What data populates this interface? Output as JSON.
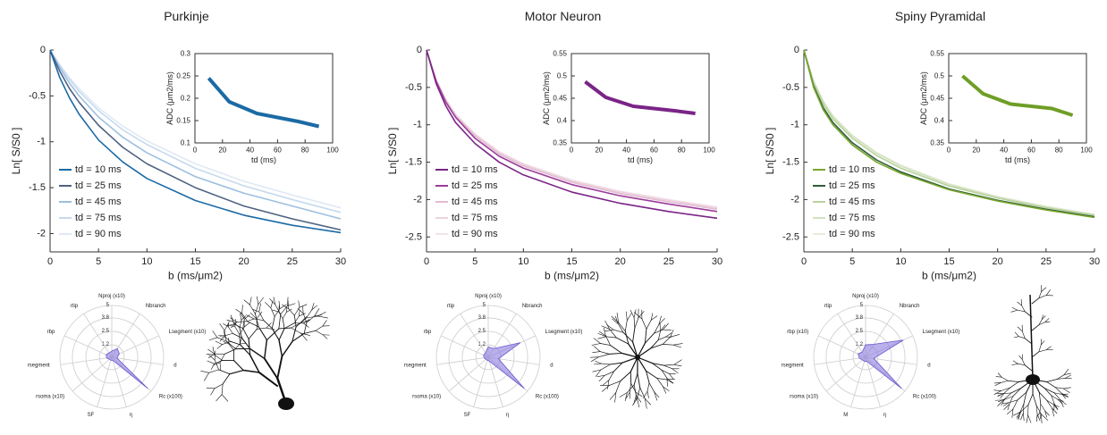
{
  "chart_data": [
    {
      "type": "line",
      "title": "Purkinje",
      "xlabel": "b (ms/μm2)",
      "ylabel": "Ln[ S/S0 ]",
      "x": [
        0,
        1,
        2,
        3,
        5,
        7.5,
        10,
        15,
        20,
        25,
        30
      ],
      "xlim": [
        0,
        30
      ],
      "xticks": [
        0,
        5,
        10,
        15,
        20,
        25,
        30
      ],
      "ylim": [
        -2.2,
        0
      ],
      "yticks": [
        0,
        -0.5,
        -1,
        -1.5,
        -2
      ],
      "legend": "lower left",
      "series": [
        {
          "name": "td = 10 ms",
          "color": "#1b6aa5",
          "values": [
            0,
            -0.3,
            -0.52,
            -0.7,
            -0.98,
            -1.22,
            -1.4,
            -1.64,
            -1.8,
            -1.91,
            -1.99
          ]
        },
        {
          "name": "td = 25 ms",
          "color": "#4e6282",
          "values": [
            0,
            -0.23,
            -0.42,
            -0.57,
            -0.82,
            -1.06,
            -1.24,
            -1.5,
            -1.7,
            -1.84,
            -1.96
          ]
        },
        {
          "name": "td = 45 ms",
          "color": "#9dbfe0",
          "values": [
            0,
            -0.19,
            -0.36,
            -0.5,
            -0.73,
            -0.95,
            -1.12,
            -1.38,
            -1.56,
            -1.7,
            -1.84
          ]
        },
        {
          "name": "td = 75 ms",
          "color": "#c5d9ee",
          "values": [
            0,
            -0.17,
            -0.32,
            -0.45,
            -0.66,
            -0.87,
            -1.03,
            -1.29,
            -1.48,
            -1.63,
            -1.77
          ]
        },
        {
          "name": "td = 90 ms",
          "color": "#dfe9f5",
          "values": [
            0,
            -0.16,
            -0.3,
            -0.42,
            -0.63,
            -0.83,
            -0.99,
            -1.24,
            -1.43,
            -1.58,
            -1.72
          ]
        }
      ]
    },
    {
      "type": "line",
      "xlabel": "td (ms)",
      "ylabel": "ADC (μm2/ms)",
      "color": "#1b6aa5",
      "x": [
        10,
        25,
        45,
        75,
        90
      ],
      "values": [
        0.245,
        0.192,
        0.166,
        0.148,
        0.137
      ],
      "xlim": [
        0,
        100
      ],
      "xticks": [
        0,
        20,
        40,
        60,
        80,
        100
      ],
      "ylim": [
        0.1,
        0.3
      ],
      "yticks": [
        0.1,
        0.15,
        0.2,
        0.25,
        0.3
      ]
    },
    {
      "type": "radar",
      "color": "#8b7be0",
      "axes": [
        "Nproj (x10)",
        "Nbranch",
        "Lsegment (x10)",
        "d",
        "Rc (x100)",
        "η",
        "SF",
        "rsoma (x10)",
        "rsegment",
        "rbp",
        "rtip"
      ],
      "values": [
        0.6,
        1.0,
        0.8,
        0.5,
        4.6,
        0.3,
        0.3,
        0.3,
        0.5,
        0.6,
        0.5
      ],
      "rlim": [
        0,
        5
      ],
      "rticks": [
        1.2,
        2.5,
        3.8,
        5
      ]
    },
    {
      "type": "line",
      "title": "Motor Neuron",
      "xlabel": "b (ms/μm2)",
      "ylabel": "Ln[ S/S0 ]",
      "x": [
        0,
        1,
        2,
        3,
        5,
        7.5,
        10,
        15,
        20,
        25,
        30
      ],
      "xlim": [
        0,
        30
      ],
      "xticks": [
        0,
        5,
        10,
        15,
        20,
        25,
        30
      ],
      "ylim": [
        -2.7,
        0
      ],
      "yticks": [
        0,
        -0.5,
        -1,
        -1.5,
        -2,
        -2.5
      ],
      "legend": "lower left",
      "series": [
        {
          "name": "td = 10 ms",
          "color": "#7a2487",
          "values": [
            0,
            -0.45,
            -0.75,
            -0.97,
            -1.25,
            -1.5,
            -1.67,
            -1.9,
            -2.05,
            -2.16,
            -2.25
          ]
        },
        {
          "name": "td = 25 ms",
          "color": "#9c3d9a",
          "values": [
            0,
            -0.42,
            -0.7,
            -0.9,
            -1.18,
            -1.42,
            -1.58,
            -1.8,
            -1.95,
            -2.06,
            -2.16
          ]
        },
        {
          "name": "td = 45 ms",
          "color": "#e3bcd2",
          "values": [
            0,
            -0.41,
            -0.68,
            -0.88,
            -1.15,
            -1.39,
            -1.55,
            -1.77,
            -1.92,
            -2.03,
            -2.13
          ]
        },
        {
          "name": "td = 75 ms",
          "color": "#ecd2df",
          "values": [
            0,
            -0.4,
            -0.67,
            -0.87,
            -1.13,
            -1.37,
            -1.53,
            -1.75,
            -1.9,
            -2.01,
            -2.11
          ]
        },
        {
          "name": "td = 90 ms",
          "color": "#f3e3ea",
          "values": [
            0,
            -0.4,
            -0.66,
            -0.86,
            -1.12,
            -1.36,
            -1.52,
            -1.74,
            -1.89,
            -2.0,
            -2.1
          ]
        }
      ]
    },
    {
      "type": "line",
      "xlabel": "td (ms)",
      "ylabel": "ADC (μm2/ms)",
      "color": "#7a2487",
      "x": [
        10,
        25,
        45,
        75,
        90
      ],
      "values": [
        0.487,
        0.452,
        0.432,
        0.422,
        0.416
      ],
      "xlim": [
        0,
        100
      ],
      "xticks": [
        0,
        20,
        40,
        60,
        80,
        100
      ],
      "ylim": [
        0.35,
        0.55
      ],
      "yticks": [
        0.35,
        0.4,
        0.45,
        0.5,
        0.55
      ]
    },
    {
      "type": "radar",
      "color": "#8b7be0",
      "axes": [
        "Nproj (x10)",
        "Nbranch",
        "Lsegment (x10)",
        "d",
        "Rc (x100)",
        "η",
        "SF",
        "rsoma (x10)",
        "rsegment",
        "rbp",
        "rtip"
      ],
      "values": [
        1.0,
        1.0,
        3.4,
        1.0,
        4.6,
        0.4,
        0.3,
        0.3,
        0.4,
        0.5,
        0.5
      ],
      "rlim": [
        0,
        5
      ],
      "rticks": [
        1.2,
        2.5,
        3.8,
        5
      ]
    },
    {
      "type": "line",
      "title": "Spiny Pyramidal",
      "xlabel": "b (ms/μm2)",
      "ylabel": "Ln[ S/S0 ]",
      "x": [
        0,
        1,
        2,
        3,
        5,
        7.5,
        10,
        15,
        20,
        25,
        30
      ],
      "xlim": [
        0,
        30
      ],
      "xticks": [
        0,
        5,
        10,
        15,
        20,
        25,
        30
      ],
      "ylim": [
        -2.7,
        0
      ],
      "yticks": [
        0,
        -0.5,
        -1,
        -1.5,
        -2,
        -2.5
      ],
      "legend": "lower left",
      "series": [
        {
          "name": "td = 10 ms",
          "color": "#7aa62e",
          "values": [
            0,
            -0.5,
            -0.8,
            -1.0,
            -1.27,
            -1.5,
            -1.65,
            -1.87,
            -2.02,
            -2.14,
            -2.24
          ]
        },
        {
          "name": "td = 25 ms",
          "color": "#2f5e3a",
          "values": [
            0,
            -0.48,
            -0.77,
            -0.97,
            -1.24,
            -1.47,
            -1.63,
            -1.86,
            -2.01,
            -2.13,
            -2.23
          ]
        },
        {
          "name": "td = 45 ms",
          "color": "#b9d19b",
          "values": [
            0,
            -0.44,
            -0.72,
            -0.92,
            -1.18,
            -1.41,
            -1.58,
            -1.82,
            -1.98,
            -2.11,
            -2.21
          ]
        },
        {
          "name": "td = 75 ms",
          "color": "#d2e2c0",
          "values": [
            0,
            -0.42,
            -0.69,
            -0.89,
            -1.15,
            -1.38,
            -1.55,
            -1.8,
            -1.97,
            -2.1,
            -2.2
          ]
        },
        {
          "name": "td = 90 ms",
          "color": "#e5eed9",
          "values": [
            0,
            -0.41,
            -0.68,
            -0.88,
            -1.14,
            -1.37,
            -1.54,
            -1.79,
            -1.96,
            -2.09,
            -2.2
          ]
        }
      ]
    },
    {
      "type": "line",
      "xlabel": "td (ms)",
      "ylabel": "ADC (μm2/ms)",
      "color": "#6f9e26",
      "x": [
        10,
        25,
        45,
        75,
        90
      ],
      "values": [
        0.5,
        0.46,
        0.437,
        0.427,
        0.412
      ],
      "xlim": [
        0,
        100
      ],
      "xticks": [
        0,
        20,
        40,
        60,
        80,
        100
      ],
      "ylim": [
        0.35,
        0.55
      ],
      "yticks": [
        0.35,
        0.4,
        0.45,
        0.5,
        0.55
      ]
    },
    {
      "type": "radar",
      "color": "#8b7be0",
      "axes": [
        "Nproj (x10)",
        "Nbranch",
        "Lsegment (x10)",
        "d",
        "Rc (x100)",
        "η",
        "M",
        "rsoma (x10)",
        "rsegment",
        "rbp (x10)",
        "rtip"
      ],
      "values": [
        1.2,
        1.5,
        4.0,
        0.8,
        4.6,
        0.4,
        0.4,
        0.4,
        0.6,
        0.8,
        0.6
      ],
      "rlim": [
        0,
        5
      ],
      "rticks": [
        1.2,
        2.5,
        3.8,
        5
      ]
    }
  ]
}
